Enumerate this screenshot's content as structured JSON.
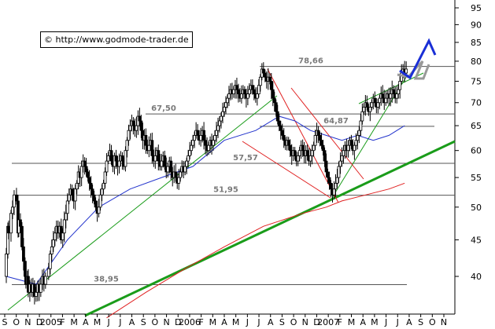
{
  "copyright": "© http://www.godmode-trader.de",
  "chart_data": {
    "type": "candlestick",
    "y_axis": {
      "position": "right",
      "scale": "log",
      "ylim": [
        35,
        100
      ],
      "ticks": [
        40,
        45,
        50,
        55,
        60,
        65,
        70,
        75,
        80,
        85,
        90,
        95
      ]
    },
    "x_axis": {
      "labels": [
        "S",
        "O",
        "N",
        "D",
        "2005",
        "F",
        "M",
        "A",
        "M",
        "J",
        "J",
        "A",
        "S",
        "O",
        "N",
        "D",
        "2006",
        "F",
        "M",
        "A",
        "M",
        "J",
        "J",
        "A",
        "S",
        "O",
        "N",
        "D",
        "2007",
        "F",
        "M",
        "A",
        "M",
        "J",
        "J",
        "A",
        "S",
        "O",
        "N"
      ]
    },
    "levels": [
      {
        "label": "78,66",
        "value": 78.66
      },
      {
        "label": "67,50",
        "value": 67.5
      },
      {
        "label": "64,87",
        "value": 64.87
      },
      {
        "label": "57,57",
        "value": 57.57
      },
      {
        "label": "51,95",
        "value": 51.95
      },
      {
        "label": "38,95",
        "value": 38.95
      }
    ],
    "price_path": [
      [
        0,
        40
      ],
      [
        2,
        43
      ],
      [
        4,
        47
      ],
      [
        5,
        46
      ],
      [
        8,
        49
      ],
      [
        10,
        50
      ],
      [
        12,
        52
      ],
      [
        15,
        51
      ],
      [
        17,
        46
      ],
      [
        18,
        48
      ],
      [
        20,
        47
      ],
      [
        22,
        44
      ],
      [
        24,
        42
      ],
      [
        26,
        40
      ],
      [
        27,
        39
      ],
      [
        29,
        40
      ],
      [
        30,
        38
      ],
      [
        32,
        39
      ],
      [
        34,
        38
      ],
      [
        36,
        39
      ],
      [
        38,
        37.5
      ],
      [
        40,
        38
      ],
      [
        42,
        39
      ],
      [
        44,
        38
      ],
      [
        46,
        39
      ],
      [
        48,
        40
      ],
      [
        50,
        39
      ],
      [
        52,
        40
      ],
      [
        56,
        41
      ],
      [
        58,
        43
      ],
      [
        60,
        44
      ],
      [
        62,
        45
      ],
      [
        64,
        46
      ],
      [
        66,
        47
      ],
      [
        68,
        46
      ],
      [
        70,
        47
      ],
      [
        72,
        45
      ],
      [
        74,
        46
      ],
      [
        76,
        48
      ],
      [
        78,
        49
      ],
      [
        80,
        51
      ],
      [
        82,
        52
      ],
      [
        84,
        53
      ],
      [
        86,
        52
      ],
      [
        88,
        51
      ],
      [
        90,
        53
      ],
      [
        92,
        54
      ],
      [
        94,
        56
      ],
      [
        96,
        55
      ],
      [
        98,
        57
      ],
      [
        100,
        58
      ],
      [
        102,
        57
      ],
      [
        104,
        56
      ],
      [
        106,
        55
      ],
      [
        108,
        54
      ],
      [
        110,
        53
      ],
      [
        112,
        52
      ],
      [
        114,
        51
      ],
      [
        116,
        50
      ],
      [
        118,
        49
      ],
      [
        120,
        50
      ],
      [
        122,
        52
      ],
      [
        124,
        53
      ],
      [
        126,
        54
      ],
      [
        128,
        56
      ],
      [
        130,
        58
      ],
      [
        132,
        59
      ],
      [
        134,
        60
      ],
      [
        136,
        58
      ],
      [
        138,
        57
      ],
      [
        140,
        59
      ],
      [
        142,
        58
      ],
      [
        144,
        57
      ],
      [
        146,
        58
      ],
      [
        148,
        59
      ],
      [
        150,
        58
      ],
      [
        152,
        57
      ],
      [
        154,
        60
      ],
      [
        156,
        62
      ],
      [
        158,
        64
      ],
      [
        160,
        65
      ],
      [
        162,
        66
      ],
      [
        164,
        65
      ],
      [
        166,
        64
      ],
      [
        168,
        65
      ],
      [
        170,
        67
      ],
      [
        172,
        66
      ],
      [
        174,
        64
      ],
      [
        176,
        62
      ],
      [
        178,
        63
      ],
      [
        180,
        61
      ],
      [
        182,
        60
      ],
      [
        184,
        61
      ],
      [
        186,
        62
      ],
      [
        188,
        59
      ],
      [
        190,
        58
      ],
      [
        192,
        59
      ],
      [
        194,
        60
      ],
      [
        196,
        58
      ],
      [
        198,
        57
      ],
      [
        200,
        58
      ],
      [
        202,
        59
      ],
      [
        204,
        57
      ],
      [
        206,
        56
      ],
      [
        208,
        57
      ],
      [
        210,
        58
      ],
      [
        212,
        56
      ],
      [
        214,
        55
      ],
      [
        216,
        56
      ],
      [
        218,
        55
      ],
      [
        220,
        54
      ],
      [
        222,
        55
      ],
      [
        224,
        56
      ],
      [
        226,
        57
      ],
      [
        228,
        56
      ],
      [
        230,
        57
      ],
      [
        232,
        58
      ],
      [
        234,
        59
      ],
      [
        236,
        60
      ],
      [
        238,
        61
      ],
      [
        240,
        62
      ],
      [
        242,
        63
      ],
      [
        244,
        64
      ],
      [
        246,
        63
      ],
      [
        248,
        62
      ],
      [
        250,
        63
      ],
      [
        252,
        64
      ],
      [
        254,
        62
      ],
      [
        256,
        61
      ],
      [
        258,
        60
      ],
      [
        260,
        61
      ],
      [
        262,
        62
      ],
      [
        264,
        61
      ],
      [
        266,
        62
      ],
      [
        268,
        63
      ],
      [
        270,
        64
      ],
      [
        272,
        65
      ],
      [
        274,
        66
      ],
      [
        276,
        67
      ],
      [
        278,
        68
      ],
      [
        280,
        69
      ],
      [
        282,
        70
      ],
      [
        284,
        71
      ],
      [
        286,
        72
      ],
      [
        288,
        73
      ],
      [
        290,
        72
      ],
      [
        292,
        73
      ],
      [
        294,
        74
      ],
      [
        296,
        73
      ],
      [
        298,
        72
      ],
      [
        300,
        71
      ],
      [
        302,
        72
      ],
      [
        304,
        73
      ],
      [
        306,
        72
      ],
      [
        308,
        71
      ],
      [
        310,
        72
      ],
      [
        312,
        73
      ],
      [
        314,
        74
      ],
      [
        316,
        73
      ],
      [
        318,
        72
      ],
      [
        320,
        71
      ],
      [
        322,
        72
      ],
      [
        324,
        74
      ],
      [
        326,
        76
      ],
      [
        328,
        78
      ],
      [
        330,
        77
      ],
      [
        332,
        76
      ],
      [
        334,
        75
      ],
      [
        336,
        76
      ],
      [
        338,
        75
      ],
      [
        340,
        73
      ],
      [
        342,
        71
      ],
      [
        344,
        70
      ],
      [
        346,
        68
      ],
      [
        348,
        66
      ],
      [
        350,
        65
      ],
      [
        352,
        64
      ],
      [
        354,
        63
      ],
      [
        356,
        62
      ],
      [
        358,
        61
      ],
      [
        360,
        62
      ],
      [
        362,
        61
      ],
      [
        364,
        60
      ],
      [
        366,
        59
      ],
      [
        368,
        60
      ],
      [
        370,
        59
      ],
      [
        372,
        58
      ],
      [
        374,
        59
      ],
      [
        376,
        60
      ],
      [
        378,
        61
      ],
      [
        380,
        60
      ],
      [
        382,
        59
      ],
      [
        384,
        60
      ],
      [
        386,
        59
      ],
      [
        388,
        58
      ],
      [
        390,
        59
      ],
      [
        392,
        60
      ],
      [
        394,
        61
      ],
      [
        396,
        63
      ],
      [
        398,
        64
      ],
      [
        400,
        63
      ],
      [
        402,
        62
      ],
      [
        404,
        61
      ],
      [
        406,
        60
      ],
      [
        408,
        58
      ],
      [
        410,
        56
      ],
      [
        412,
        55
      ],
      [
        414,
        54
      ],
      [
        416,
        53
      ],
      [
        418,
        52
      ],
      [
        420,
        53
      ],
      [
        422,
        54
      ],
      [
        424,
        55
      ],
      [
        426,
        57
      ],
      [
        428,
        58
      ],
      [
        430,
        59
      ],
      [
        432,
        60
      ],
      [
        434,
        61
      ],
      [
        436,
        60
      ],
      [
        438,
        61
      ],
      [
        440,
        62
      ],
      [
        442,
        61
      ],
      [
        444,
        60
      ],
      [
        446,
        61
      ],
      [
        448,
        62
      ],
      [
        450,
        63
      ],
      [
        452,
        64
      ],
      [
        454,
        66
      ],
      [
        456,
        68
      ],
      [
        458,
        69
      ],
      [
        460,
        70
      ],
      [
        462,
        69
      ],
      [
        464,
        68
      ],
      [
        466,
        69
      ],
      [
        468,
        70
      ],
      [
        470,
        71
      ],
      [
        472,
        70
      ],
      [
        474,
        69
      ],
      [
        476,
        70
      ],
      [
        478,
        71
      ],
      [
        480,
        72
      ],
      [
        482,
        71
      ],
      [
        484,
        70
      ],
      [
        486,
        71
      ],
      [
        488,
        72
      ],
      [
        490,
        71
      ],
      [
        492,
        72
      ],
      [
        494,
        73
      ],
      [
        496,
        72
      ],
      [
        498,
        71
      ],
      [
        500,
        72
      ],
      [
        502,
        73
      ],
      [
        504,
        75
      ],
      [
        506,
        77
      ],
      [
        508,
        78
      ],
      [
        510,
        77
      ],
      [
        512,
        78
      ]
    ],
    "ma_blue": [
      [
        2,
        40
      ],
      [
        40,
        39
      ],
      [
        80,
        45
      ],
      [
        120,
        50
      ],
      [
        160,
        53
      ],
      [
        200,
        55
      ],
      [
        240,
        57
      ],
      [
        280,
        62
      ],
      [
        320,
        64
      ],
      [
        350,
        67
      ],
      [
        370,
        66
      ],
      [
        390,
        64
      ],
      [
        410,
        63
      ],
      [
        430,
        62
      ],
      [
        450,
        63
      ],
      [
        470,
        62
      ],
      [
        490,
        63
      ],
      [
        510,
        65
      ]
    ],
    "ma_red": [
      [
        130,
        35
      ],
      [
        180,
        38
      ],
      [
        230,
        41
      ],
      [
        280,
        44
      ],
      [
        330,
        47
      ],
      [
        380,
        49
      ],
      [
        410,
        50
      ],
      [
        430,
        51
      ],
      [
        460,
        52
      ],
      [
        490,
        53
      ],
      [
        510,
        54
      ]
    ]
  }
}
